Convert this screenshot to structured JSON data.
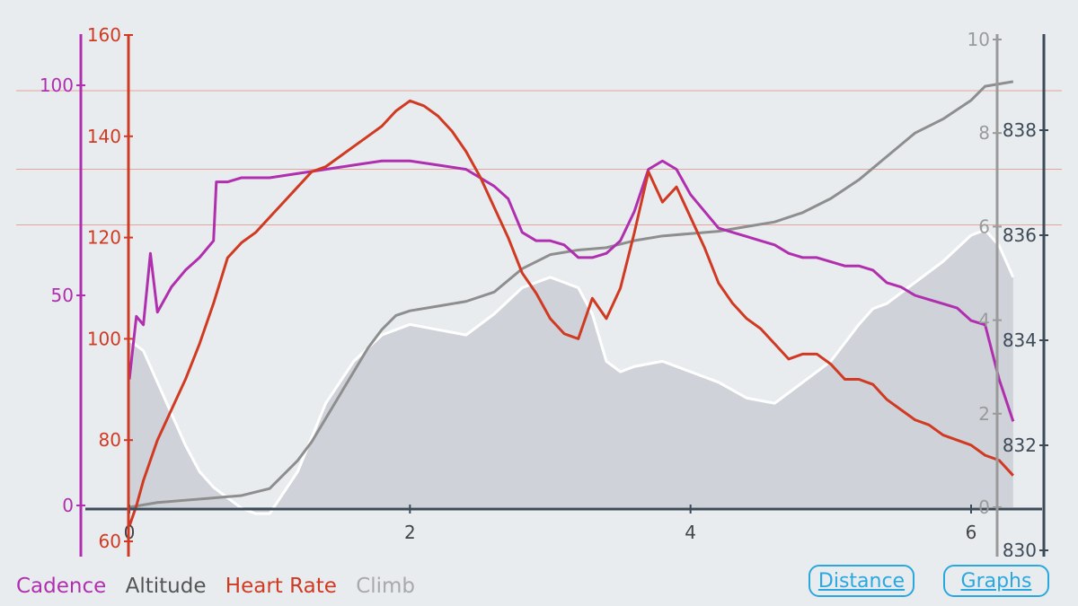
{
  "chart_data": {
    "type": "line",
    "x_axis": {
      "ticks": [
        "0",
        "2",
        "4",
        "6"
      ],
      "range": [
        0,
        6.3
      ]
    },
    "y_axes": {
      "cadence": {
        "color": "#b02fae",
        "range": [
          0,
          113
        ],
        "ticks": [
          "0",
          "50",
          "100"
        ]
      },
      "heart_rate": {
        "color": "#d03a22",
        "range": [
          60,
          160
        ],
        "ticks": [
          "60",
          "80",
          "100",
          "120",
          "140",
          "160"
        ]
      },
      "climb": {
        "color": "#9a9a9a",
        "range": [
          0,
          10
        ],
        "ticks": [
          "0",
          "2",
          "4",
          "6",
          "8",
          "10"
        ]
      },
      "altitude": {
        "color": "#444444",
        "range": [
          830,
          840
        ],
        "ticks": [
          "830",
          "832",
          "834",
          "836",
          "838"
        ]
      }
    },
    "gridlines_heart_rate": [
      122.5,
      133.5,
      149
    ],
    "series": [
      {
        "name": "Heart Rate",
        "axis": "heart_rate",
        "color": "#d03a22",
        "x": [
          0,
          0.05,
          0.1,
          0.2,
          0.3,
          0.4,
          0.5,
          0.6,
          0.7,
          0.8,
          0.9,
          1.0,
          1.1,
          1.2,
          1.3,
          1.4,
          1.5,
          1.6,
          1.7,
          1.8,
          1.9,
          2.0,
          2.1,
          2.2,
          2.3,
          2.4,
          2.5,
          2.6,
          2.7,
          2.8,
          2.9,
          3.0,
          3.1,
          3.2,
          3.3,
          3.4,
          3.5,
          3.6,
          3.7,
          3.8,
          3.9,
          4.0,
          4.1,
          4.2,
          4.3,
          4.4,
          4.5,
          4.6,
          4.7,
          4.8,
          4.9,
          5.0,
          5.1,
          5.2,
          5.3,
          5.4,
          5.5,
          5.6,
          5.7,
          5.8,
          5.9,
          6.0,
          6.1,
          6.2,
          6.3
        ],
        "values": [
          63,
          67,
          72,
          80,
          86,
          92,
          99,
          107,
          116,
          119,
          121,
          124,
          127,
          130,
          133,
          134,
          136,
          138,
          140,
          142,
          145,
          147,
          146,
          144,
          141,
          137,
          132,
          126,
          120,
          113,
          109,
          104,
          101,
          100,
          108,
          104,
          110,
          121,
          133,
          127,
          130,
          124,
          118,
          111,
          107,
          104,
          102,
          99,
          96,
          97,
          97,
          95,
          92,
          92,
          91,
          88,
          86,
          84,
          83,
          81,
          80,
          79,
          77,
          76,
          73
        ]
      },
      {
        "name": "Cadence",
        "axis": "cadence",
        "color": "#b02fae",
        "x": [
          0,
          0.05,
          0.1,
          0.15,
          0.2,
          0.3,
          0.4,
          0.5,
          0.6,
          0.62,
          0.7,
          0.8,
          0.9,
          1.0,
          1.2,
          1.4,
          1.6,
          1.8,
          2.0,
          2.2,
          2.4,
          2.6,
          2.7,
          2.8,
          2.9,
          3.0,
          3.1,
          3.2,
          3.3,
          3.4,
          3.5,
          3.6,
          3.7,
          3.8,
          3.9,
          4.0,
          4.1,
          4.2,
          4.3,
          4.4,
          4.5,
          4.6,
          4.7,
          4.8,
          4.9,
          5.0,
          5.1,
          5.2,
          5.3,
          5.4,
          5.5,
          5.6,
          5.7,
          5.8,
          5.9,
          6.0,
          6.1,
          6.2,
          6.3
        ],
        "values": [
          30,
          45,
          43,
          60,
          46,
          52,
          56,
          59,
          63,
          77,
          77,
          78,
          78,
          78,
          79,
          80,
          81,
          82,
          82,
          81,
          80,
          76,
          73,
          65,
          63,
          63,
          62,
          59,
          59,
          60,
          63,
          70,
          80,
          82,
          80,
          74,
          70,
          66,
          65,
          64,
          63,
          62,
          60,
          59,
          59,
          58,
          57,
          57,
          56,
          53,
          52,
          50,
          49,
          48,
          47,
          44,
          43,
          30,
          20
        ]
      },
      {
        "name": "Climb",
        "axis": "climb",
        "color": "#8e8e8e",
        "x": [
          0,
          0.2,
          0.4,
          0.6,
          0.8,
          1.0,
          1.1,
          1.2,
          1.3,
          1.4,
          1.5,
          1.6,
          1.7,
          1.8,
          1.9,
          2.0,
          2.2,
          2.4,
          2.6,
          2.8,
          3.0,
          3.2,
          3.4,
          3.6,
          3.8,
          4.0,
          4.2,
          4.4,
          4.6,
          4.8,
          5.0,
          5.2,
          5.4,
          5.6,
          5.8,
          6.0,
          6.1,
          6.3
        ],
        "values": [
          0,
          0.1,
          0.15,
          0.2,
          0.25,
          0.4,
          0.7,
          1.0,
          1.4,
          1.9,
          2.4,
          2.9,
          3.4,
          3.8,
          4.1,
          4.2,
          4.3,
          4.4,
          4.6,
          5.1,
          5.4,
          5.5,
          5.55,
          5.7,
          5.8,
          5.85,
          5.9,
          6.0,
          6.1,
          6.3,
          6.6,
          7.0,
          7.5,
          8.0,
          8.3,
          8.7,
          9.0,
          9.1
        ]
      },
      {
        "name": "Altitude",
        "axis": "altitude",
        "color": "#ffffff",
        "x": [
          0,
          0.1,
          0.2,
          0.3,
          0.4,
          0.5,
          0.6,
          0.7,
          0.8,
          0.9,
          1.0,
          1.2,
          1.4,
          1.6,
          1.8,
          2.0,
          2.2,
          2.4,
          2.6,
          2.8,
          3.0,
          3.1,
          3.2,
          3.3,
          3.4,
          3.5,
          3.6,
          3.8,
          4.0,
          4.2,
          4.4,
          4.6,
          4.8,
          5.0,
          5.2,
          5.3,
          5.4,
          5.6,
          5.8,
          6.0,
          6.1,
          6.2,
          6.3
        ],
        "values": [
          834,
          833.8,
          833.2,
          832.6,
          832,
          831.5,
          831.2,
          831,
          830.8,
          830.7,
          830.7,
          831.5,
          832.8,
          833.6,
          834.1,
          834.3,
          834.2,
          834.1,
          834.5,
          835,
          835.2,
          835.1,
          835,
          834.5,
          833.6,
          833.4,
          833.5,
          833.6,
          833.4,
          833.2,
          832.9,
          832.8,
          833.2,
          833.6,
          834.3,
          834.6,
          834.7,
          835.1,
          835.5,
          836.0,
          836.1,
          835.8,
          835.2
        ]
      }
    ]
  },
  "legend": {
    "cadence": "Cadence",
    "altitude": "Altitude",
    "heart_rate": "Heart Rate",
    "climb": "Climb"
  },
  "buttons": {
    "distance": "Distance",
    "graphs": "Graphs"
  },
  "colors": {
    "accent": "#29a8e0",
    "background": "#e9ecef"
  }
}
